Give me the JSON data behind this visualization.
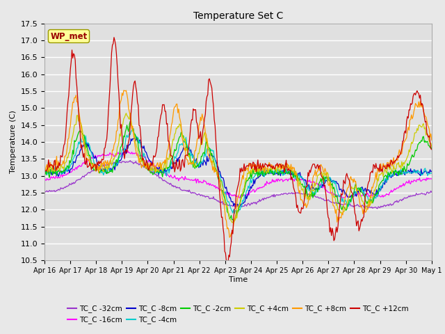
{
  "title": "Temperature Set C",
  "xlabel": "Time",
  "ylabel": "Temperature (C)",
  "ylim": [
    10.5,
    17.5
  ],
  "series_names": [
    "TC_C -32cm",
    "TC_C -16cm",
    "TC_C -8cm",
    "TC_C -4cm",
    "TC_C -2cm",
    "TC_C +4cm",
    "TC_C +8cm",
    "TC_C +12cm"
  ],
  "series_colors": [
    "#9933cc",
    "#ff00ff",
    "#0000cc",
    "#00cccc",
    "#00cc00",
    "#cccc00",
    "#ff9900",
    "#cc0000"
  ],
  "xtick_labels": [
    "Apr 16",
    "Apr 17",
    "Apr 18",
    "Apr 19",
    "Apr 20",
    "Apr 21",
    "Apr 22",
    "Apr 23",
    "Apr 24",
    "Apr 25",
    "Apr 26",
    "Apr 27",
    "Apr 28",
    "Apr 29",
    "Apr 30",
    "May 1"
  ],
  "wp_met_box_facecolor": "#ffff99",
  "wp_met_box_edgecolor": "#999900",
  "wp_met_text_color": "#990000",
  "figure_facecolor": "#e8e8e8",
  "plot_bg_color": "#e0e0e0",
  "grid_color": "#ffffff",
  "n_points": 480
}
